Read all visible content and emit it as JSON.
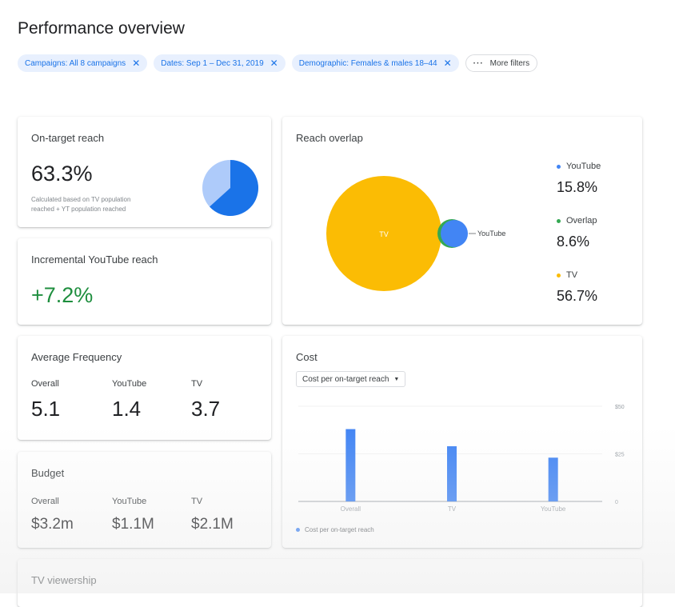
{
  "page": {
    "title": "Performance overview"
  },
  "filters": {
    "chips": [
      {
        "label": "Campaigns: All 8 campaigns"
      },
      {
        "label": "Dates: Sep 1 – Dec 31, 2019"
      },
      {
        "label": "Demographic: Females & males 18–44"
      }
    ],
    "more_label": "More filters"
  },
  "on_target": {
    "title": "On-target reach",
    "value": "63.3%",
    "note_line1": "Calculated based on TV population",
    "note_line2": "reached + YT population reached",
    "pie_fraction": 0.633,
    "colors": {
      "main": "#1a73e8",
      "rest": "#aecbfa"
    }
  },
  "incremental": {
    "title": "Incremental YouTube reach",
    "value": "+7.2%"
  },
  "overlap": {
    "title": "Reach overlap",
    "tv_label": "TV",
    "youtube_label": "YouTube",
    "legend": [
      {
        "name": "YouTube",
        "value": "15.8%",
        "color": "#4285f4"
      },
      {
        "name": "Overlap",
        "value": "8.6%",
        "color": "#34a853"
      },
      {
        "name": "TV",
        "value": "56.7%",
        "color": "#fbbc04"
      }
    ]
  },
  "frequency": {
    "title": "Average Frequency",
    "items": [
      {
        "label": "Overall",
        "value": "5.1"
      },
      {
        "label": "YouTube",
        "value": "1.4"
      },
      {
        "label": "TV",
        "value": "3.7"
      }
    ]
  },
  "budget": {
    "title": "Budget",
    "items": [
      {
        "label": "Overall",
        "value": "$3.2m"
      },
      {
        "label": "YouTube",
        "value": "$1.1M"
      },
      {
        "label": "TV",
        "value": "$2.1M"
      }
    ]
  },
  "cost": {
    "title": "Cost",
    "dropdown": "Cost per on-target reach",
    "legend": "Cost per on-target reach"
  },
  "chart_data": {
    "type": "bar",
    "categories": [
      "Overall",
      "TV",
      "YouTube"
    ],
    "values": [
      38,
      29,
      23
    ],
    "y_ticks": [
      {
        "v": 50,
        "label": "$50"
      },
      {
        "v": 25,
        "label": "$25"
      },
      {
        "v": 0,
        "label": "0"
      }
    ],
    "ylim": [
      0,
      50
    ],
    "bar_color": "#4285f4"
  },
  "tv_viewership": {
    "title": "TV viewership"
  }
}
